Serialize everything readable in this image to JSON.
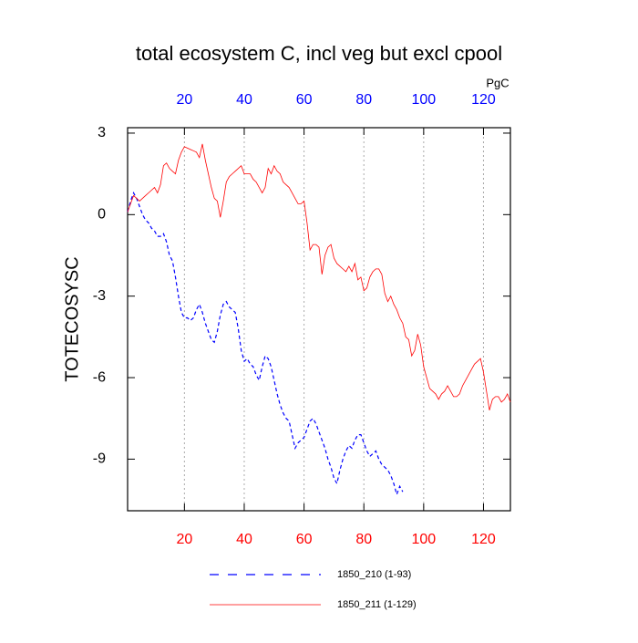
{
  "chart_data": {
    "type": "line",
    "title": "total ecosystem C, incl veg but excl cpool",
    "units_label": "PgC",
    "y_label": "TOTECOSYSC",
    "x": [
      1,
      2,
      3,
      4,
      5,
      6,
      7,
      8,
      9,
      10,
      11,
      12,
      13,
      14,
      15,
      16,
      17,
      18,
      19,
      20,
      21,
      22,
      23,
      24,
      25,
      26,
      27,
      28,
      29,
      30,
      31,
      32,
      33,
      34,
      35,
      36,
      37,
      38,
      39,
      40,
      41,
      42,
      43,
      44,
      45,
      46,
      47,
      48,
      49,
      50,
      51,
      52,
      53,
      54,
      55,
      56,
      57,
      58,
      59,
      60,
      61,
      62,
      63,
      64,
      65,
      66,
      67,
      68,
      69,
      70,
      71,
      72,
      73,
      74,
      75,
      76,
      77,
      78,
      79,
      80,
      81,
      82,
      83,
      84,
      85,
      86,
      87,
      88,
      89,
      90,
      91,
      92,
      93,
      94,
      95,
      96,
      97,
      98,
      99,
      100,
      101,
      102,
      103,
      104,
      105,
      106,
      107,
      108,
      109,
      110,
      111,
      112,
      113,
      114,
      115,
      116,
      117,
      118,
      119,
      120,
      121,
      122,
      123,
      124,
      125,
      126,
      127,
      128,
      129
    ],
    "series": [
      {
        "name": "1850_210 (1-93)",
        "color": "#0000ff",
        "line_style": "dashed",
        "values": [
          0.1,
          0.5,
          0.8,
          0.6,
          0.3,
          0.0,
          -0.2,
          -0.3,
          -0.5,
          -0.6,
          -0.8,
          -0.8,
          -0.7,
          -1.0,
          -1.5,
          -1.7,
          -2.3,
          -3.0,
          -3.6,
          -3.8,
          -3.8,
          -3.9,
          -3.8,
          -3.5,
          -3.3,
          -3.6,
          -4.0,
          -4.3,
          -4.6,
          -4.7,
          -4.3,
          -3.7,
          -3.3,
          -3.2,
          -3.4,
          -3.5,
          -3.6,
          -4.2,
          -5.0,
          -5.4,
          -5.3,
          -5.5,
          -5.6,
          -5.9,
          -6.1,
          -5.6,
          -5.2,
          -5.3,
          -5.6,
          -6.1,
          -6.6,
          -7.0,
          -7.3,
          -7.5,
          -7.6,
          -8.1,
          -8.6,
          -8.4,
          -8.3,
          -8.2,
          -7.9,
          -7.6,
          -7.5,
          -7.7,
          -8.0,
          -8.3,
          -8.6,
          -9.0,
          -9.3,
          -9.7,
          -9.9,
          -9.4,
          -9.0,
          -8.7,
          -8.5,
          -8.6,
          -8.3,
          -8.1,
          -8.1,
          -8.4,
          -8.7,
          -8.9,
          -8.8,
          -8.7,
          -9.0,
          -9.2,
          -9.3,
          -9.4,
          -9.6,
          -9.9,
          -10.3,
          -10.0,
          -10.2,
          null,
          null,
          null,
          null,
          null,
          null,
          null,
          null,
          null,
          null,
          null,
          null,
          null,
          null,
          null,
          null,
          null,
          null,
          null,
          null,
          null,
          null,
          null,
          null,
          null,
          null,
          null,
          null,
          null,
          null,
          null,
          null,
          null,
          null,
          null,
          null
        ]
      },
      {
        "name": "1850_211 (1-129)",
        "color": "#ff0000",
        "line_style": "solid",
        "values": [
          0.1,
          0.4,
          0.7,
          0.6,
          0.5,
          0.6,
          0.7,
          0.8,
          0.9,
          1.0,
          0.8,
          1.1,
          1.8,
          1.9,
          1.7,
          1.6,
          1.5,
          2.0,
          2.3,
          2.5,
          2.45,
          2.4,
          2.35,
          2.3,
          2.1,
          2.6,
          2.0,
          1.5,
          1.0,
          0.6,
          0.5,
          -0.1,
          0.5,
          1.2,
          1.4,
          1.5,
          1.6,
          1.7,
          1.8,
          1.5,
          1.5,
          1.5,
          1.3,
          1.2,
          1.0,
          0.8,
          1.0,
          1.7,
          1.5,
          1.8,
          1.6,
          1.5,
          1.2,
          1.1,
          1.0,
          0.8,
          0.6,
          0.4,
          0.4,
          0.5,
          -0.3,
          -1.3,
          -1.1,
          -1.1,
          -1.2,
          -2.2,
          -1.5,
          -1.2,
          -1.1,
          -1.6,
          -1.8,
          -1.9,
          -2.0,
          -2.1,
          -1.9,
          -2.1,
          -1.8,
          -2.4,
          -2.3,
          -2.8,
          -2.7,
          -2.3,
          -2.1,
          -2.0,
          -2.0,
          -2.2,
          -2.9,
          -3.2,
          -3.0,
          -3.3,
          -3.5,
          -3.8,
          -4.0,
          -4.5,
          -4.6,
          -5.2,
          -5.0,
          -4.4,
          -4.8,
          -5.6,
          -6.0,
          -6.4,
          -6.5,
          -6.6,
          -6.8,
          -6.6,
          -6.5,
          -6.3,
          -6.5,
          -6.7,
          -6.7,
          -6.6,
          -6.3,
          -6.1,
          -5.9,
          -5.7,
          -5.5,
          -5.4,
          -5.3,
          -5.8,
          -6.5,
          -7.2,
          -6.8,
          -6.7,
          -6.7,
          -6.9,
          -6.8,
          -6.6,
          -6.9
        ]
      }
    ],
    "xlim": [
      1,
      129
    ],
    "ylim": [
      -10.9,
      3.2
    ],
    "xticks": [
      20,
      40,
      60,
      80,
      100,
      120
    ],
    "yticks": [
      -9,
      -6,
      -3,
      0,
      3
    ],
    "grid": true,
    "top_tick_color": "#0000ff",
    "bottom_tick_color": "#ff0000",
    "legend": "bottom"
  }
}
